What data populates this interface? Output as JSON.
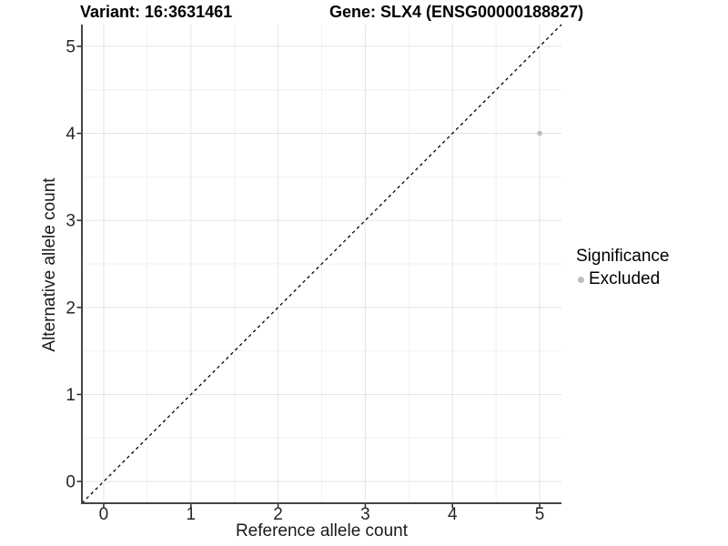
{
  "chart_data": {
    "type": "scatter",
    "titles": {
      "left": "Variant: 16:3631461",
      "right": "Gene: SLX4 (ENSG00000188827)"
    },
    "xlabel": "Reference allele count",
    "ylabel": "Alternative allele count",
    "xlim": [
      -0.25,
      5.25
    ],
    "ylim": [
      -0.25,
      5.25
    ],
    "x_ticks": [
      0,
      1,
      2,
      3,
      4,
      5
    ],
    "y_ticks": [
      0,
      1,
      2,
      3,
      4,
      5
    ],
    "x_minor": [
      0.5,
      1.5,
      2.5,
      3.5,
      4.5
    ],
    "y_minor": [
      0.5,
      1.5,
      2.5,
      3.5,
      4.5
    ],
    "grid": "on",
    "identity_line": {
      "equation": "y = x",
      "style": "dashed",
      "color": "#000000"
    },
    "series": [
      {
        "name": "Excluded",
        "color": "#bdbdbd",
        "points": [
          {
            "x": 5,
            "y": 4
          }
        ]
      }
    ],
    "legend": {
      "title": "Significance",
      "position": "right",
      "items": [
        {
          "label": "Excluded",
          "color": "#bdbdbd"
        }
      ]
    }
  },
  "colors": {
    "background": "#ffffff",
    "grid_major": "#e4e4e4",
    "grid_minor": "#f1f1f1",
    "axis_line": "#454545",
    "tick_mark": "#333333",
    "tick_text": "#262626"
  }
}
